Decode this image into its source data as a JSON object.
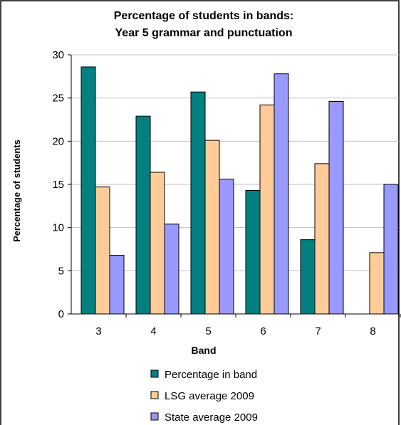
{
  "chart_data": {
    "type": "bar",
    "title": [
      "Percentage of students in bands:",
      "Year 5 grammar and punctuation"
    ],
    "xlabel": "Band",
    "ylabel": "Percentage of students",
    "categories": [
      "3",
      "4",
      "5",
      "6",
      "7",
      "8"
    ],
    "ylim": [
      0,
      30
    ],
    "yticks": [
      0,
      5,
      10,
      15,
      20,
      25,
      30
    ],
    "grid": true,
    "legend_position": "bottom",
    "series": [
      {
        "name": "Percentage in band",
        "color": "#008080",
        "values": [
          28.6,
          22.9,
          25.7,
          14.3,
          8.6,
          0
        ]
      },
      {
        "name": "LSG average 2009",
        "color": "#FFCC99",
        "values": [
          14.7,
          16.4,
          20.1,
          24.2,
          17.4,
          7.1
        ]
      },
      {
        "name": "State average 2009",
        "color": "#9999FF",
        "values": [
          6.8,
          10.4,
          15.6,
          27.8,
          24.6,
          15.0
        ]
      }
    ]
  }
}
